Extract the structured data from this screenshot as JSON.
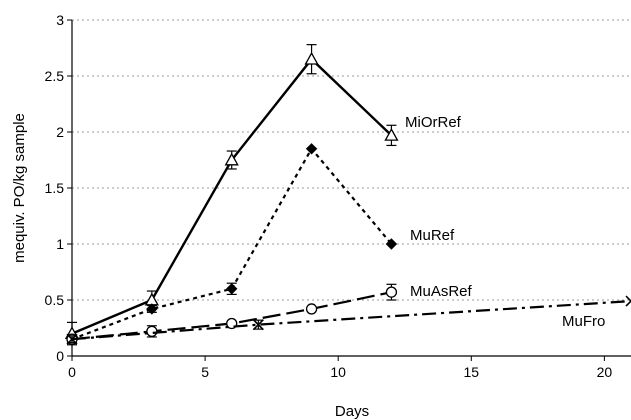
{
  "chart_data": {
    "type": "line",
    "title": "",
    "xlabel": "Days",
    "ylabel": "mequiv. PO/kg sample",
    "xlim": [
      0,
      21
    ],
    "ylim": [
      0,
      3
    ],
    "xticks": [
      0,
      5,
      10,
      15,
      20
    ],
    "yticks": [
      0,
      0.5,
      1,
      1.5,
      2,
      2.5,
      3
    ],
    "xtick_labels": [
      "0",
      "5",
      "10",
      "15",
      "20"
    ],
    "ytick_labels": [
      "0",
      "0.5",
      "1",
      "1.5",
      "2",
      "2.5",
      "3"
    ],
    "grid": "horizontal dotted",
    "legend": "inline labels",
    "series": [
      {
        "name": "MiOrRef",
        "marker": "triangle-open",
        "line": "solid",
        "color": "#000000",
        "x": [
          0,
          3,
          6,
          9,
          12
        ],
        "y": [
          0.2,
          0.5,
          1.75,
          2.65,
          1.97
        ],
        "err": [
          0.1,
          0.08,
          0.08,
          0.13,
          0.09
        ]
      },
      {
        "name": "MuRef",
        "marker": "diamond-filled",
        "line": "dotted",
        "color": "#000000",
        "x": [
          0,
          3,
          6,
          9,
          12
        ],
        "y": [
          0.15,
          0.42,
          0.6,
          1.85,
          1.0
        ],
        "err": [
          0,
          0.03,
          0.05,
          0,
          0
        ]
      },
      {
        "name": "MuAsRef",
        "marker": "circle-open",
        "line": "long-dash",
        "color": "#000000",
        "x": [
          0,
          3,
          6,
          9,
          12
        ],
        "y": [
          0.15,
          0.22,
          0.29,
          0.42,
          0.57
        ],
        "err": [
          0.03,
          0.05,
          0,
          0,
          0.07
        ]
      },
      {
        "name": "MuFro",
        "marker": "x",
        "line": "dash-dot",
        "color": "#000000",
        "x": [
          0,
          7,
          21
        ],
        "y": [
          0.15,
          0.28,
          0.49
        ],
        "err": [
          0.03,
          0.04,
          0
        ]
      }
    ]
  }
}
